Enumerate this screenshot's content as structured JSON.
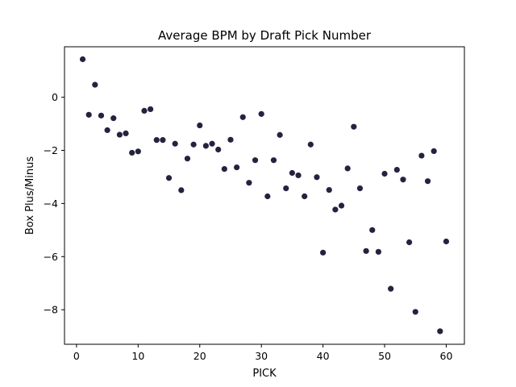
{
  "chart_data": {
    "type": "scatter",
    "title": "Average BPM by Draft Pick Number",
    "xlabel": "PICK",
    "ylabel": "Box Plus/Minus",
    "xlim": [
      -1.95,
      62.95
    ],
    "ylim": [
      -9.3,
      1.9
    ],
    "xticks": [
      0,
      10,
      20,
      30,
      40,
      50,
      60
    ],
    "yticks": [
      -8,
      -6,
      -4,
      -2,
      0
    ],
    "xtick_labels": [
      "0",
      "10",
      "20",
      "30",
      "40",
      "50",
      "60"
    ],
    "ytick_labels": [
      "−8",
      "−6",
      "−4",
      "−2",
      "0"
    ],
    "grid": false,
    "marker_color": "#232340",
    "series": [
      {
        "x": [
          1,
          2,
          3,
          4,
          5,
          6,
          7,
          8,
          9,
          10,
          11,
          12,
          13,
          14,
          15,
          16,
          17,
          18,
          19,
          20,
          21,
          22,
          23,
          24,
          25,
          26,
          27,
          28,
          29,
          30,
          31,
          32,
          33,
          34,
          35,
          36,
          37,
          38,
          39,
          40,
          41,
          42,
          43,
          44,
          45,
          46,
          47,
          48,
          49,
          50,
          51,
          52,
          53,
          54,
          55,
          56,
          57,
          58,
          59,
          60
        ],
        "y": [
          1.43,
          -0.66,
          0.47,
          -0.69,
          -1.24,
          -0.79,
          -1.41,
          -1.36,
          -2.09,
          -2.04,
          -0.51,
          -0.45,
          -1.61,
          -1.61,
          -3.04,
          -1.75,
          -3.5,
          -2.31,
          -1.78,
          -1.06,
          -1.83,
          -1.75,
          -1.97,
          -2.7,
          -1.6,
          -2.64,
          -0.75,
          -3.22,
          -2.37,
          -0.63,
          -3.73,
          -2.37,
          -1.42,
          -3.43,
          -2.85,
          -2.94,
          -3.73,
          -1.78,
          -3.01,
          -5.85,
          -3.49,
          -4.23,
          -4.08,
          -2.68,
          -1.11,
          -3.43,
          -5.79,
          -5.0,
          -5.82,
          -2.88,
          -7.21,
          -2.73,
          -3.1,
          -5.46,
          -8.08,
          -2.2,
          -3.16,
          -2.03,
          -8.81,
          -5.43
        ]
      }
    ]
  }
}
